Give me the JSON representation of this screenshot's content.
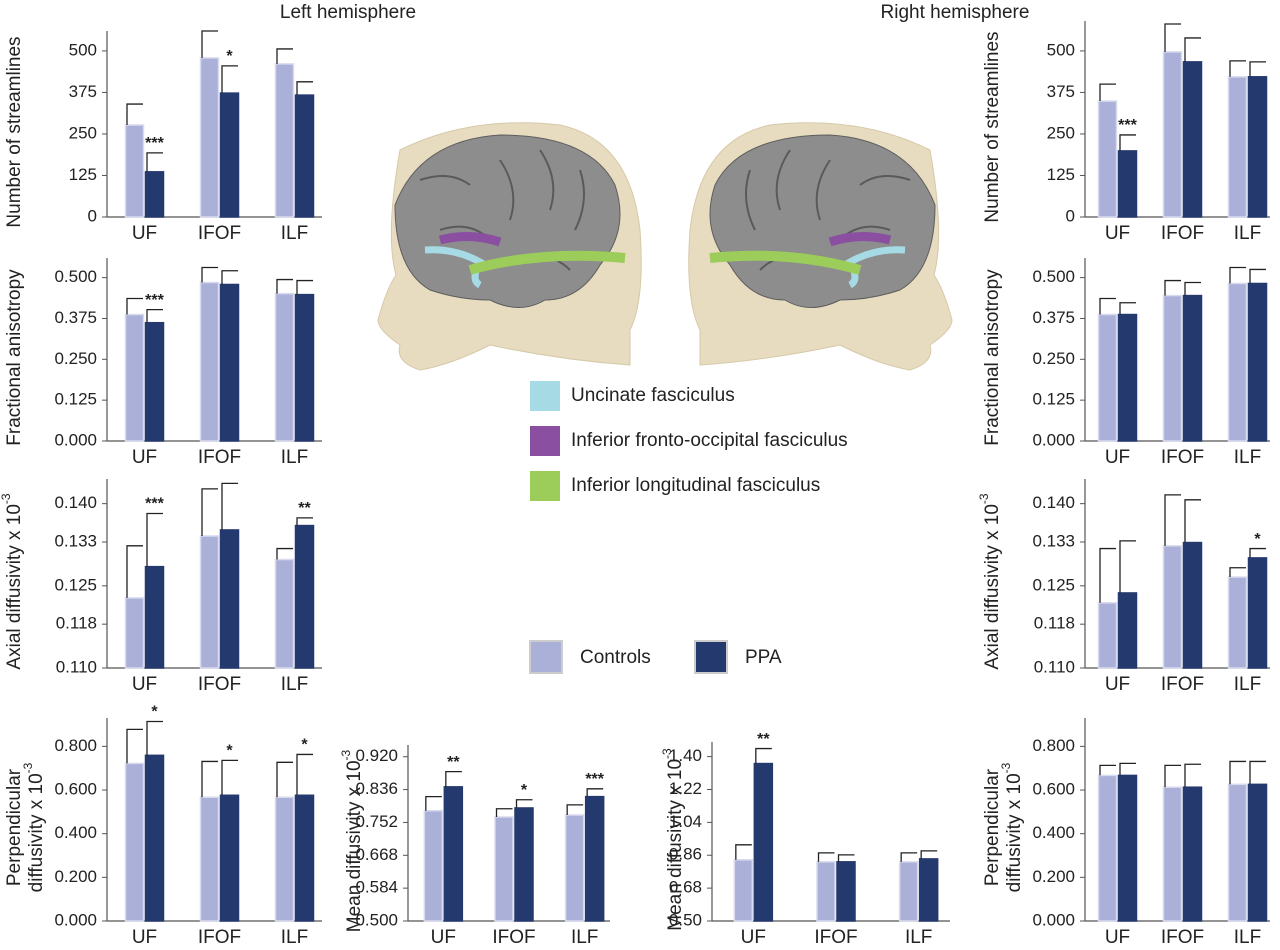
{
  "headings": [
    "Left hemisphere",
    "Right hemisphere"
  ],
  "tract_legend": [
    {
      "label": "Uncinate fasciculus",
      "color": "#a6dbe6"
    },
    {
      "label": "Inferior fronto-occipital fasciculus",
      "color": "#8a4fa0"
    },
    {
      "label": "Inferior longitudinal fasciculus",
      "color": "#9ccc5a"
    }
  ],
  "chart_data": [
    {
      "type": "bar",
      "ylabel": [
        "Number of streamlines"
      ],
      "categories": [
        "UF",
        "IFOF",
        "ILF"
      ],
      "series": [
        {
          "name": "Controls",
          "color": "#aab0d8",
          "values": [
            277,
            479,
            461
          ],
          "errors": [
            63,
            81,
            45
          ],
          "significance": [
            null,
            null,
            null
          ]
        },
        {
          "name": "PPA",
          "color": "#243a6e",
          "values": [
            136,
            373,
            367
          ],
          "errors": [
            57,
            82,
            40
          ],
          "significance": [
            "***",
            "*",
            null
          ]
        }
      ],
      "ylim": [
        0,
        560
      ],
      "yticks": [
        0,
        125,
        250,
        375,
        500
      ]
    },
    {
      "type": "bar",
      "ylabel": [
        "Number of streamlines"
      ],
      "categories": [
        "UF",
        "IFOF",
        "ILF"
      ],
      "series": [
        {
          "name": "Controls",
          "color": "#aab0d8",
          "values": [
            349,
            497,
            422
          ],
          "errors": [
            51,
            84,
            48
          ],
          "significance": [
            null,
            null,
            null
          ]
        },
        {
          "name": "PPA",
          "color": "#243a6e",
          "values": [
            199,
            467,
            422
          ],
          "errors": [
            48,
            72,
            45
          ],
          "significance": [
            "***",
            null,
            null
          ]
        }
      ],
      "ylim": [
        0,
        590
      ],
      "yticks": [
        0,
        125,
        250,
        375,
        500
      ]
    },
    {
      "type": "bar",
      "ylabel": [
        "Fractional anisotropy"
      ],
      "categories": [
        "UF",
        "IFOF",
        "ILF"
      ],
      "series": [
        {
          "name": "Controls",
          "color": "#aab0d8",
          "values": [
            0.387,
            0.485,
            0.451
          ],
          "errors": [
            0.049,
            0.046,
            0.043
          ],
          "significance": [
            null,
            null,
            null
          ]
        },
        {
          "name": "PPA",
          "color": "#243a6e",
          "values": [
            0.362,
            0.479,
            0.448
          ],
          "errors": [
            0.04,
            0.042,
            0.043
          ],
          "significance": [
            "***",
            null,
            null
          ]
        }
      ],
      "ylim": [
        0,
        0.56
      ],
      "yticks": [
        {
          "value": 0,
          "label": "0.000"
        },
        0.125,
        {
          "value": 0.25,
          "label": "0.250"
        },
        0.375,
        {
          "value": 0.5,
          "label": "0.500"
        }
      ]
    },
    {
      "type": "bar",
      "ylabel": [
        "Fractional anisotropy"
      ],
      "categories": [
        "UF",
        "IFOF",
        "ILF"
      ],
      "series": [
        {
          "name": "Controls",
          "color": "#aab0d8",
          "values": [
            0.387,
            0.445,
            0.482
          ],
          "errors": [
            0.049,
            0.046,
            0.049
          ],
          "significance": [
            null,
            null,
            null
          ]
        },
        {
          "name": "PPA",
          "color": "#243a6e",
          "values": [
            0.387,
            0.445,
            0.482
          ],
          "errors": [
            0.036,
            0.04,
            0.043
          ],
          "significance": [
            null,
            null,
            null
          ]
        }
      ],
      "ylim": [
        0,
        0.56
      ],
      "yticks": [
        {
          "value": 0,
          "label": "0.000"
        },
        0.125,
        {
          "value": 0.25,
          "label": "0.250"
        },
        0.375,
        {
          "value": 0.5,
          "label": "0.500"
        }
      ]
    },
    {
      "type": "bar",
      "ylabel": [
        "Axial diffusivity x 10"
      ],
      "ylabel_exponent": "-3",
      "categories": [
        "UF",
        "IFOF",
        "ILF"
      ],
      "series": [
        {
          "name": "Controls",
          "color": "#aab0d8",
          "values": [
            0.1228,
            0.1341,
            0.1298
          ],
          "errors": [
            0.0095,
            0.0086,
            0.002
          ],
          "significance": [
            null,
            null,
            null
          ]
        },
        {
          "name": "PPA",
          "color": "#243a6e",
          "values": [
            0.1285,
            0.1352,
            0.136
          ],
          "errors": [
            0.0097,
            0.0085,
            0.0014
          ],
          "significance": [
            "***",
            null,
            "**"
          ]
        }
      ],
      "ylim": [
        0.11,
        0.1445
      ],
      "yticks": [
        {
          "value": 0.11,
          "label": "0.110"
        },
        0.118,
        0.125,
        0.133,
        {
          "value": 0.14,
          "label": "0.140"
        }
      ]
    },
    {
      "type": "bar",
      "ylabel": [
        "Axial diffusivity x 10"
      ],
      "ylabel_exponent": "-3",
      "categories": [
        "UF",
        "IFOF",
        "ILF"
      ],
      "series": [
        {
          "name": "Controls",
          "color": "#aab0d8",
          "values": [
            0.1219,
            0.1323,
            0.1266
          ],
          "errors": [
            0.0099,
            0.0093,
            0.0017
          ],
          "significance": [
            null,
            null,
            null
          ]
        },
        {
          "name": "PPA",
          "color": "#243a6e",
          "values": [
            0.1237,
            0.1329,
            0.1301
          ],
          "errors": [
            0.0095,
            0.0078,
            0.0017
          ],
          "significance": [
            null,
            null,
            "*"
          ]
        }
      ],
      "ylim": [
        0.11,
        0.1445
      ],
      "yticks": [
        {
          "value": 0.11,
          "label": "0.110"
        },
        0.118,
        0.125,
        0.133,
        {
          "value": 0.14,
          "label": "0.140"
        }
      ]
    },
    {
      "type": "bar",
      "ylabel": [
        "Perpendicular",
        "diffusivity x 10"
      ],
      "ylabel_exponent": "-3",
      "categories": [
        "UF",
        "IFOF",
        "ILF"
      ],
      "series": [
        {
          "name": "Controls",
          "color": "#aab0d8",
          "values": [
            0.722,
            0.567,
            0.567
          ],
          "errors": [
            0.156,
            0.164,
            0.16
          ],
          "significance": [
            null,
            null,
            null
          ]
        },
        {
          "name": "PPA",
          "color": "#243a6e",
          "values": [
            0.759,
            0.576,
            0.576
          ],
          "errors": [
            0.155,
            0.16,
            0.187
          ],
          "significance": [
            "*",
            "*",
            "*"
          ]
        }
      ],
      "ylim": [
        0,
        0.93
      ],
      "yticks": [
        {
          "value": 0,
          "label": "0.000"
        },
        {
          "value": 0.2,
          "label": "0.200"
        },
        {
          "value": 0.4,
          "label": "0.400"
        },
        {
          "value": 0.6,
          "label": "0.600"
        },
        {
          "value": 0.8,
          "label": "0.800"
        }
      ]
    },
    {
      "type": "bar",
      "ylabel": [
        "Mean diffusivity x 10"
      ],
      "ylabel_exponent": "-3",
      "categories": [
        "UF",
        "IFOF",
        "ILF"
      ],
      "series": [
        {
          "name": "Controls",
          "color": "#aab0d8",
          "values": [
            0.782,
            0.766,
            0.771
          ],
          "errors": [
            0.036,
            0.021,
            0.026
          ],
          "significance": [
            null,
            null,
            null
          ]
        },
        {
          "name": "PPA",
          "color": "#243a6e",
          "values": [
            0.843,
            0.789,
            0.818
          ],
          "errors": [
            0.039,
            0.021,
            0.02
          ],
          "significance": [
            "**",
            "*",
            "***"
          ]
        }
      ],
      "ylim": [
        0.5,
        0.95
      ],
      "yticks": [
        {
          "value": 0.5,
          "label": "0.500"
        },
        0.584,
        0.668,
        0.752,
        0.836,
        {
          "value": 0.92,
          "label": "0.920"
        }
      ]
    },
    {
      "type": "bar",
      "ylabel": [
        "Mean diffusivity x 10"
      ],
      "ylabel_exponent": "-3",
      "categories": [
        "UF",
        "IFOF",
        "ILF"
      ],
      "series": [
        {
          "name": "Controls",
          "color": "#aab0d8",
          "values": [
            0.835,
            0.824,
            0.824
          ],
          "errors": [
            0.082,
            0.049,
            0.049
          ],
          "significance": [
            null,
            null,
            null
          ]
        },
        {
          "name": "PPA",
          "color": "#243a6e",
          "values": [
            1.362,
            0.824,
            0.84
          ],
          "errors": [
            0.082,
            0.038,
            0.044
          ],
          "significance": [
            "**",
            null,
            null
          ]
        }
      ],
      "ylim": [
        0.5,
        1.48
      ],
      "yticks": [
        {
          "value": 0.5,
          "label": "0.50"
        },
        0.68,
        0.86,
        1.04,
        1.22,
        {
          "value": 1.4,
          "label": "1.40"
        }
      ]
    },
    {
      "type": "bar",
      "ylabel": [
        "Perpendicular",
        "diffusivity x 10"
      ],
      "ylabel_exponent": "-3",
      "categories": [
        "UF",
        "IFOF",
        "ILF"
      ],
      "series": [
        {
          "name": "Controls",
          "color": "#aab0d8",
          "values": [
            0.667,
            0.613,
            0.626
          ],
          "errors": [
            0.046,
            0.1,
            0.105
          ],
          "significance": [
            null,
            null,
            null
          ]
        },
        {
          "name": "PPA",
          "color": "#243a6e",
          "values": [
            0.667,
            0.613,
            0.626
          ],
          "errors": [
            0.055,
            0.105,
            0.105
          ],
          "significance": [
            null,
            null,
            null
          ]
        }
      ],
      "ylim": [
        0,
        0.93
      ],
      "yticks": [
        {
          "value": 0,
          "label": "0.000"
        },
        {
          "value": 0.2,
          "label": "0.200"
        },
        {
          "value": 0.4,
          "label": "0.400"
        },
        {
          "value": 0.6,
          "label": "0.600"
        },
        {
          "value": 0.8,
          "label": "0.800"
        }
      ]
    }
  ]
}
